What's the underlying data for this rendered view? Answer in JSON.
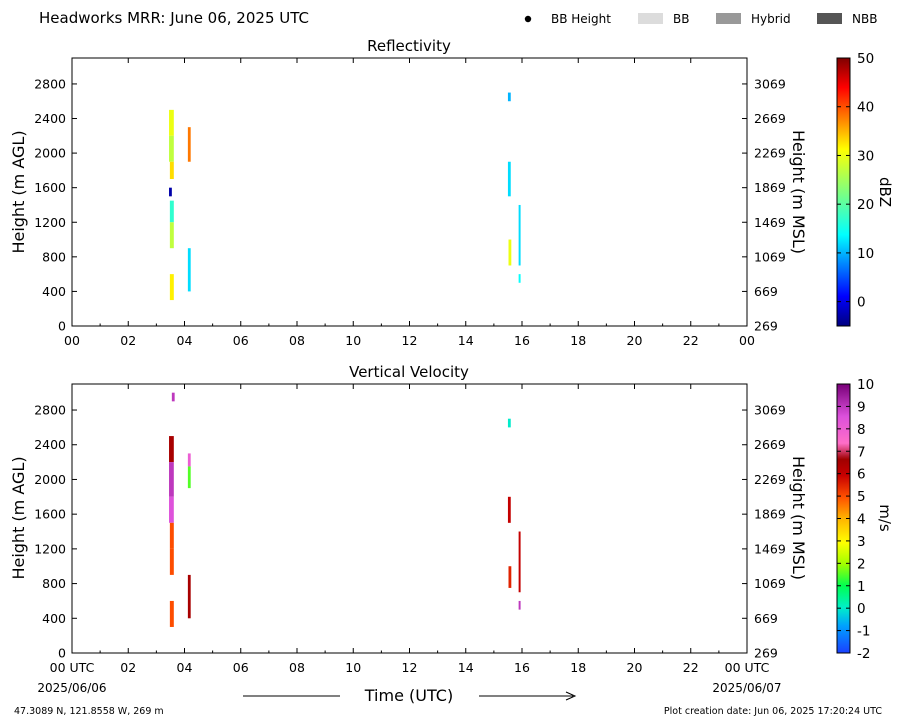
{
  "header": {
    "title": "Headworks MRR:  June 06, 2025 UTC",
    "legend": [
      {
        "label": "BB Height",
        "kind": "dot",
        "color": "#000000"
      },
      {
        "label": "BB",
        "kind": "patch",
        "color": "#dcdcdc"
      },
      {
        "label": "Hybrid",
        "kind": "patch",
        "color": "#999999"
      },
      {
        "label": "NBB",
        "kind": "patch",
        "color": "#555555"
      }
    ]
  },
  "xaxis": {
    "label": "Time (UTC)",
    "ticks": [
      "00",
      "02",
      "04",
      "06",
      "08",
      "10",
      "12",
      "14",
      "16",
      "18",
      "20",
      "22",
      "00"
    ],
    "ticks_bottom_panel": [
      "00 UTC",
      "02",
      "04",
      "06",
      "08",
      "10",
      "12",
      "14",
      "16",
      "18",
      "20",
      "22",
      "00 UTC"
    ],
    "start_date": "2025/06/06",
    "end_date": "2025/06/07"
  },
  "footer": {
    "location": "47.3089 N, 121.8558 W, 269 m",
    "created": "Plot creation date: Jun 06, 2025 17:20:24 UTC"
  },
  "chart_data": [
    {
      "type": "heatmap",
      "title": "Reflectivity",
      "xlabel": "",
      "ylabel": "Height (m AGL)",
      "y2label": "Height (m MSL)",
      "xlim": [
        0,
        24
      ],
      "ylim": [
        0,
        3100
      ],
      "yticks": [
        0,
        400,
        800,
        1200,
        1600,
        2000,
        2400,
        2800
      ],
      "y2ticks": [
        269,
        669,
        1069,
        1469,
        1869,
        2269,
        2669,
        3069
      ],
      "colorbar": {
        "label": "dBZ",
        "range": [
          -5,
          50
        ],
        "ticks": [
          0,
          10,
          20,
          30,
          40,
          50
        ],
        "colormap": "jet"
      },
      "cells": [
        {
          "t0": 3.45,
          "t1": 3.62,
          "h0": 2200,
          "h1": 2500,
          "v": 30
        },
        {
          "t0": 3.45,
          "t1": 3.62,
          "h0": 1900,
          "h1": 2200,
          "v": 27
        },
        {
          "t0": 3.48,
          "t1": 3.62,
          "h0": 1700,
          "h1": 1900,
          "v": 33
        },
        {
          "t0": 3.45,
          "t1": 3.55,
          "h0": 1500,
          "h1": 1600,
          "v": -3
        },
        {
          "t0": 3.48,
          "t1": 3.62,
          "h0": 1200,
          "h1": 1450,
          "v": 17
        },
        {
          "t0": 3.48,
          "t1": 3.62,
          "h0": 900,
          "h1": 1200,
          "v": 27
        },
        {
          "t0": 3.48,
          "t1": 3.62,
          "h0": 300,
          "h1": 600,
          "v": 32
        },
        {
          "t0": 4.12,
          "t1": 4.22,
          "h0": 1900,
          "h1": 2300,
          "v": 38
        },
        {
          "t0": 4.12,
          "t1": 4.22,
          "h0": 400,
          "h1": 900,
          "v": 12
        },
        {
          "t0": 15.5,
          "t1": 15.6,
          "h0": 2600,
          "h1": 2700,
          "v": 10
        },
        {
          "t0": 15.5,
          "t1": 15.6,
          "h0": 1500,
          "h1": 1900,
          "v": 12
        },
        {
          "t0": 15.52,
          "t1": 15.62,
          "h0": 700,
          "h1": 1000,
          "v": 30
        },
        {
          "t0": 15.88,
          "t1": 15.95,
          "h0": 700,
          "h1": 1400,
          "v": 12
        },
        {
          "t0": 15.88,
          "t1": 15.95,
          "h0": 500,
          "h1": 600,
          "v": 14
        }
      ]
    },
    {
      "type": "heatmap",
      "title": "Vertical Velocity",
      "xlabel": "Time (UTC)",
      "ylabel": "Height (m AGL)",
      "y2label": "Height (m MSL)",
      "xlim": [
        0,
        24
      ],
      "ylim": [
        0,
        3100
      ],
      "yticks": [
        0,
        400,
        800,
        1200,
        1600,
        2000,
        2400,
        2800
      ],
      "y2ticks": [
        269,
        669,
        1069,
        1469,
        1869,
        2269,
        2669,
        3069
      ],
      "colorbar": {
        "label": "m/s",
        "range": [
          -2,
          10
        ],
        "ticks": [
          -2,
          -1,
          0,
          1,
          2,
          3,
          4,
          5,
          6,
          7,
          8,
          9,
          10
        ],
        "colormap": "velocity"
      },
      "cells": [
        {
          "t0": 3.55,
          "t1": 3.65,
          "h0": 2900,
          "h1": 3000,
          "v": 9
        },
        {
          "t0": 3.45,
          "t1": 3.62,
          "h0": 2200,
          "h1": 2500,
          "v": 6.5
        },
        {
          "t0": 3.45,
          "t1": 3.62,
          "h0": 1800,
          "h1": 2200,
          "v": 9
        },
        {
          "t0": 3.45,
          "t1": 3.62,
          "h0": 1500,
          "h1": 1800,
          "v": 8.5
        },
        {
          "t0": 3.48,
          "t1": 3.62,
          "h0": 1200,
          "h1": 1500,
          "v": 5
        },
        {
          "t0": 3.48,
          "t1": 3.62,
          "h0": 900,
          "h1": 1200,
          "v": 5
        },
        {
          "t0": 3.48,
          "t1": 3.62,
          "h0": 300,
          "h1": 600,
          "v": 5
        },
        {
          "t0": 4.12,
          "t1": 4.22,
          "h0": 2150,
          "h1": 2300,
          "v": 8
        },
        {
          "t0": 4.12,
          "t1": 4.22,
          "h0": 1900,
          "h1": 2150,
          "v": 1.5
        },
        {
          "t0": 4.12,
          "t1": 4.22,
          "h0": 400,
          "h1": 900,
          "v": 6.5
        },
        {
          "t0": 15.5,
          "t1": 15.6,
          "h0": 2600,
          "h1": 2700,
          "v": 0
        },
        {
          "t0": 15.5,
          "t1": 15.6,
          "h0": 1500,
          "h1": 1800,
          "v": 6
        },
        {
          "t0": 15.52,
          "t1": 15.62,
          "h0": 750,
          "h1": 1000,
          "v": 5.5
        },
        {
          "t0": 15.88,
          "t1": 15.95,
          "h0": 700,
          "h1": 1400,
          "v": 6
        },
        {
          "t0": 15.88,
          "t1": 15.95,
          "h0": 500,
          "h1": 600,
          "v": 9
        }
      ]
    }
  ]
}
